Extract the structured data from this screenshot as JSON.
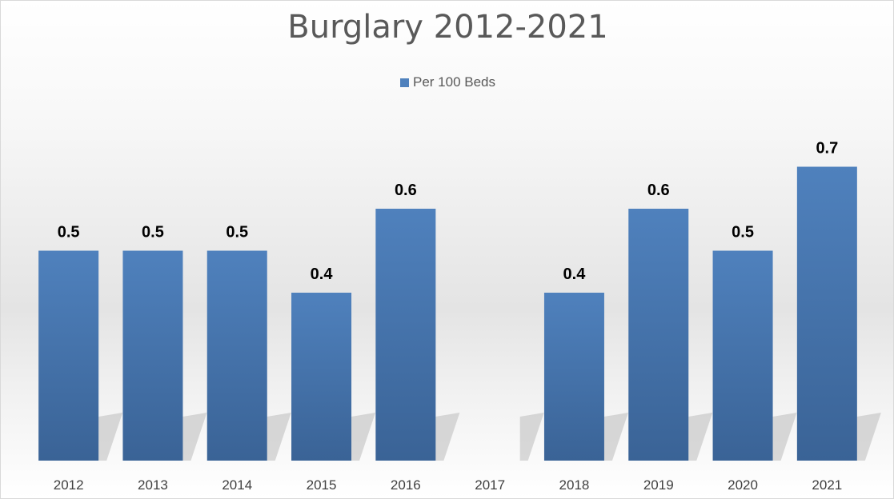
{
  "chart_data": {
    "type": "bar",
    "title": "Burglary 2012-2021",
    "categories": [
      "2012",
      "2013",
      "2014",
      "2015",
      "2016",
      "2017",
      "2018",
      "2019",
      "2020",
      "2021"
    ],
    "series": [
      {
        "name": "Per 100 Beds",
        "values": [
          0.5,
          0.5,
          0.5,
          0.4,
          0.6,
          null,
          0.4,
          0.6,
          0.5,
          0.7
        ],
        "data_labels": [
          "0.5",
          "0.5",
          "0.5",
          "0.4",
          "0.6",
          "",
          "0.4",
          "0.6",
          "0.5",
          "0.7"
        ],
        "color": "#4f81bd"
      }
    ],
    "ylim": [
      0,
      0.75
    ],
    "grid": false,
    "legend_position": "top",
    "xlabel": "",
    "ylabel": ""
  }
}
